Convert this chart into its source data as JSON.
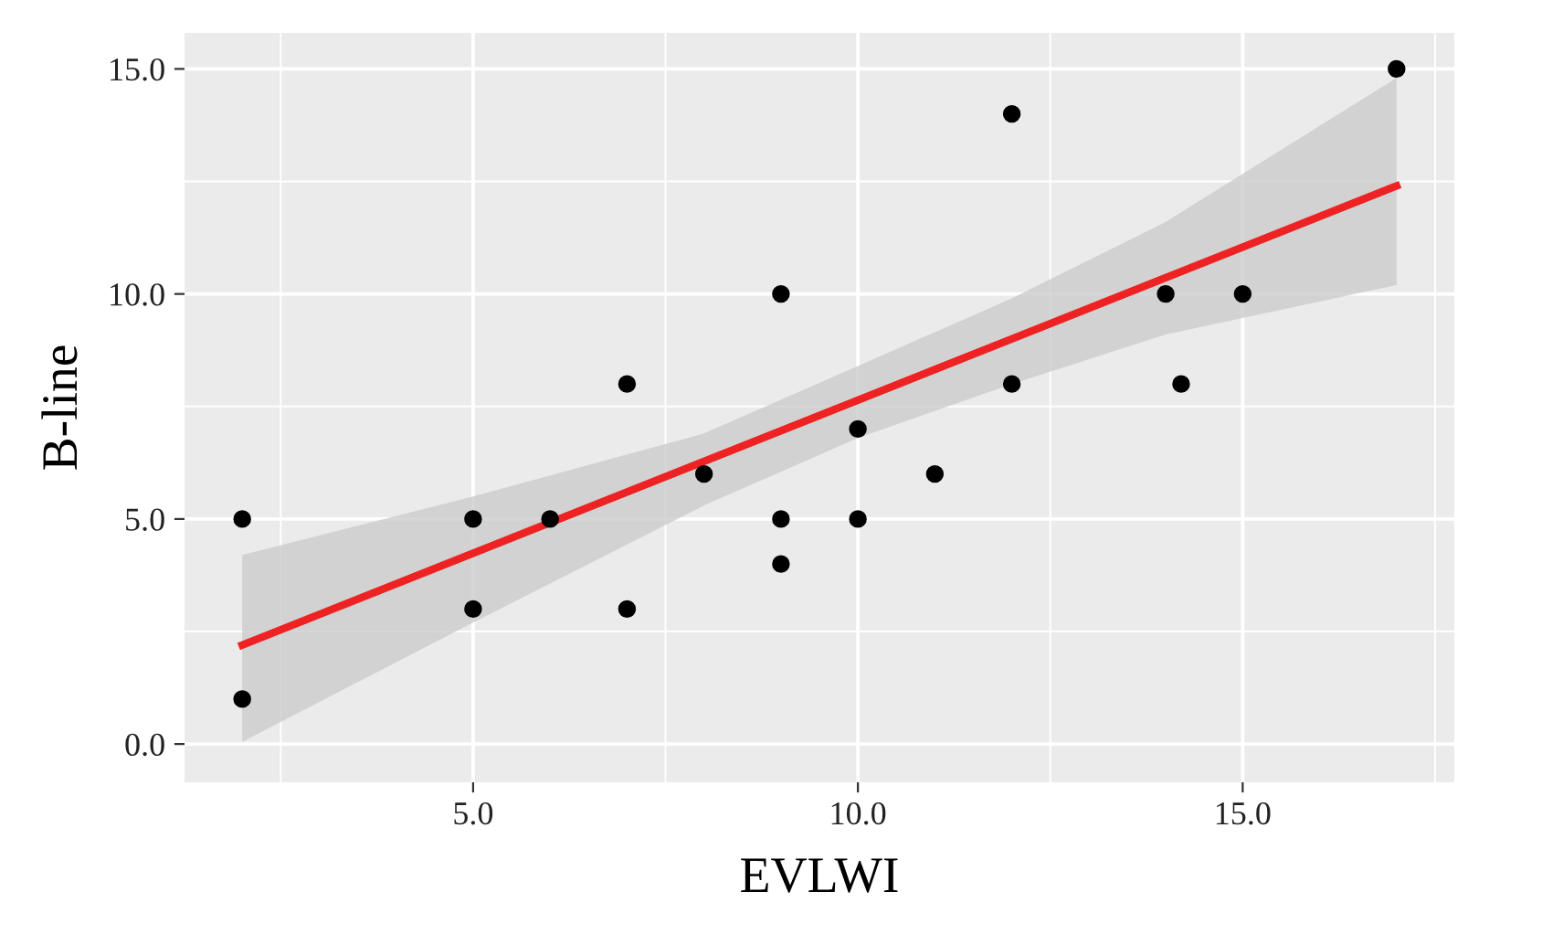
{
  "chart_data": {
    "type": "scatter",
    "xlabel": "EVLWI",
    "ylabel": "B-line",
    "series": [
      {
        "marker": "circle",
        "color": "#000000",
        "x": [
          2,
          2,
          5,
          5,
          6,
          7,
          7,
          8,
          9,
          9,
          9,
          10,
          10,
          11,
          12,
          12,
          14,
          14.2,
          15,
          17
        ],
        "values": [
          5,
          1,
          5,
          3,
          5,
          8,
          3,
          6,
          10,
          5,
          4,
          7,
          5,
          6,
          14,
          8,
          10,
          8,
          10,
          15
        ]
      },
      {
        "type": "line",
        "color": "#ee2222",
        "x": [
          2,
          5,
          8,
          10,
          12,
          14,
          17
        ],
        "values": [
          2.2,
          4.24,
          6.28,
          7.64,
          9.0,
          10.36,
          12.4
        ],
        "lower": [
          0.05,
          2.7,
          5.3,
          6.8,
          8.0,
          9.1,
          10.2
        ],
        "upper": [
          4.2,
          5.5,
          6.9,
          8.4,
          9.9,
          11.6,
          14.8
        ]
      }
    ],
    "xlim": [
      1.25,
      17.75
    ],
    "ylim": [
      -0.85,
      15.8
    ],
    "xticks": [
      {
        "value": 2.5,
        "label": null
      },
      {
        "value": 5,
        "label": "5.0"
      },
      {
        "value": 7.5,
        "label": null
      },
      {
        "value": 10,
        "label": "10.0"
      },
      {
        "value": 12.5,
        "label": null
      },
      {
        "value": 15,
        "label": "15.0"
      },
      {
        "value": 17.5,
        "label": null
      }
    ],
    "yticks": [
      {
        "value": 0,
        "label": "0.0"
      },
      {
        "value": 2.5,
        "label": null
      },
      {
        "value": 5,
        "label": "5.0"
      },
      {
        "value": 7.5,
        "label": null
      },
      {
        "value": 10,
        "label": "10.0"
      },
      {
        "value": 12.5,
        "label": null
      },
      {
        "value": 15,
        "label": "15.0"
      }
    ],
    "grid": true
  }
}
